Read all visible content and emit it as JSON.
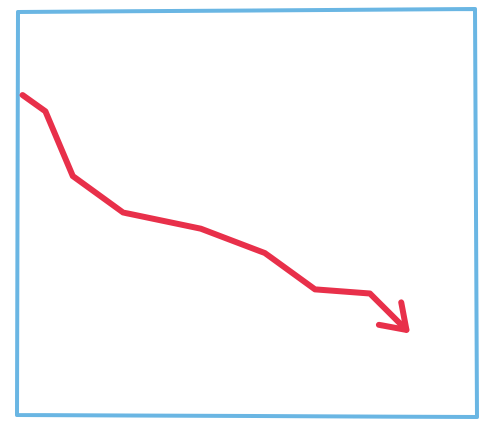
{
  "chart_data": {
    "type": "line",
    "x": [
      1,
      6,
      12,
      23,
      40,
      54,
      65,
      77,
      85
    ],
    "series": [
      {
        "color": "#e8304a",
        "values": [
          79,
          75,
          59,
          50,
          46,
          40,
          31,
          30,
          21
        ]
      }
    ],
    "xlim": [
      0,
      100
    ],
    "ylim": [
      0,
      100
    ],
    "frame_color": "#5aaee0"
  }
}
